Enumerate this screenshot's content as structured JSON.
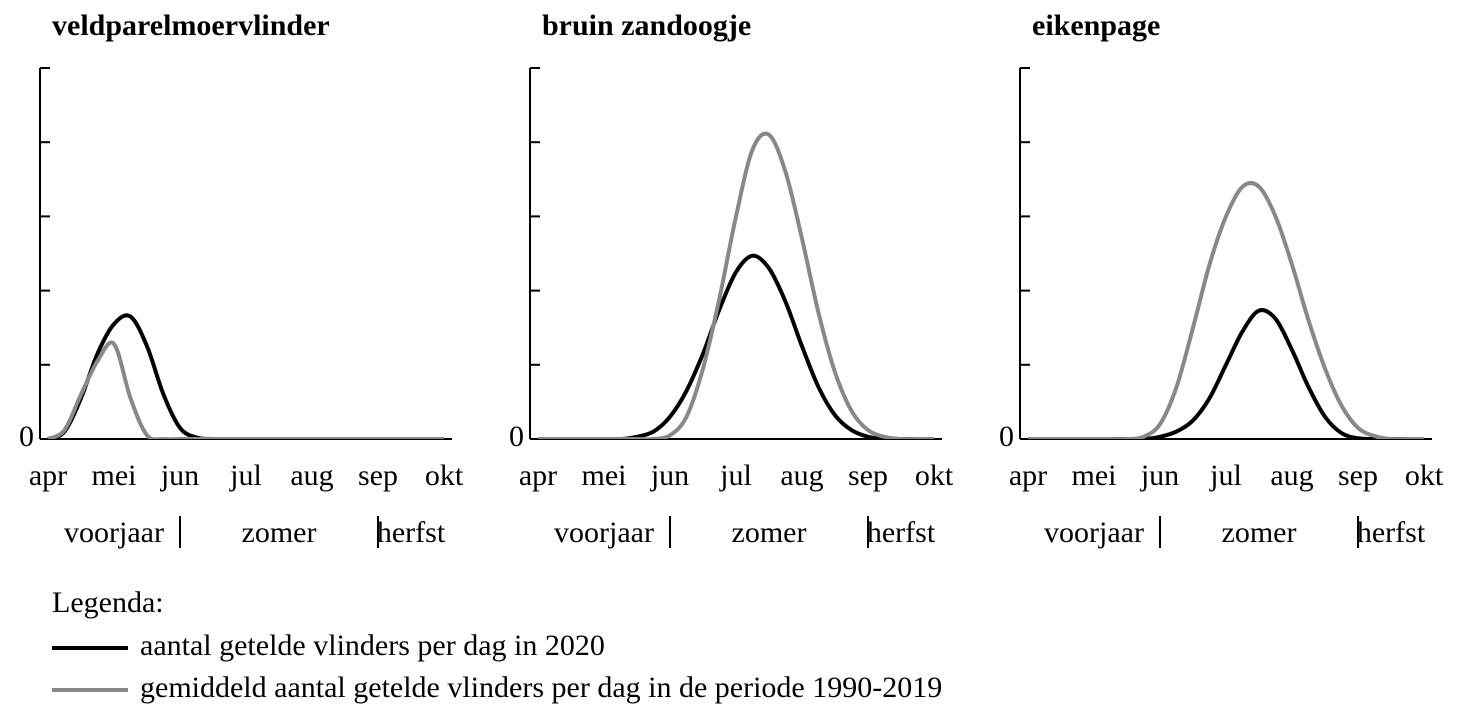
{
  "chart_data": [
    {
      "type": "line",
      "title": "veldparelmoervlinder",
      "categories": [
        "apr",
        "mei",
        "jun",
        "jul",
        "aug",
        "sep",
        "okt"
      ],
      "x": [
        0,
        0.25,
        0.5,
        0.75,
        1,
        1.25,
        1.5,
        1.75,
        2,
        2.25,
        2.5,
        2.75,
        3,
        3.25,
        3.5,
        3.75,
        4,
        4.25,
        4.5,
        4.75,
        5,
        5.25,
        5.5,
        5.75,
        6
      ],
      "xlim": [
        0,
        6
      ],
      "ylim": [
        0,
        5
      ],
      "yticks": [
        0
      ],
      "y_minor_ticks": [
        1,
        2,
        3,
        4,
        5
      ],
      "seasons": [
        "voorjaar",
        "zomer",
        "herfst"
      ],
      "season_bounds": [
        0,
        2,
        5,
        6
      ],
      "series": [
        {
          "name": "aantal getelde vlinders per dag in 2020",
          "color": "#000000",
          "values": [
            0,
            0.1,
            0.55,
            1.15,
            1.55,
            1.65,
            1.25,
            0.6,
            0.15,
            0.02,
            0,
            0,
            0,
            0,
            0,
            0,
            0,
            0,
            0,
            0,
            0,
            0,
            0,
            0,
            0
          ]
        },
        {
          "name": "gemiddeld aantal getelde vlinders per dag in de periode 1990-2019",
          "color": "#888888",
          "values": [
            0,
            0.12,
            0.6,
            1.05,
            1.28,
            0.55,
            0.05,
            0,
            0,
            0,
            0,
            0,
            0,
            0,
            0,
            0,
            0,
            0,
            0,
            0,
            0,
            0,
            0,
            0,
            0
          ]
        }
      ]
    },
    {
      "type": "line",
      "title": "bruin zandoogje",
      "categories": [
        "apr",
        "mei",
        "jun",
        "jul",
        "aug",
        "sep",
        "okt"
      ],
      "x": [
        0,
        0.25,
        0.5,
        0.75,
        1,
        1.25,
        1.5,
        1.75,
        2,
        2.25,
        2.5,
        2.75,
        3,
        3.25,
        3.5,
        3.75,
        4,
        4.25,
        4.5,
        4.75,
        5,
        5.25,
        5.5,
        5.75,
        6
      ],
      "xlim": [
        0,
        6
      ],
      "ylim": [
        0,
        5
      ],
      "yticks": [
        0
      ],
      "y_minor_ticks": [
        1,
        2,
        3,
        4,
        5
      ],
      "seasons": [
        "voorjaar",
        "zomer",
        "herfst"
      ],
      "season_bounds": [
        0,
        2,
        5,
        6
      ],
      "series": [
        {
          "name": "aantal getelde vlinders per dag in 2020",
          "color": "#000000",
          "values": [
            0,
            0,
            0,
            0,
            0,
            0,
            0.03,
            0.1,
            0.3,
            0.65,
            1.15,
            1.75,
            2.25,
            2.47,
            2.3,
            1.85,
            1.25,
            0.7,
            0.32,
            0.12,
            0.03,
            0,
            0,
            0,
            0
          ]
        },
        {
          "name": "gemiddeld aantal getelde vlinders per dag in de periode 1990-2019",
          "color": "#888888",
          "values": [
            0,
            0,
            0,
            0,
            0,
            0,
            0,
            0,
            0.05,
            0.3,
            0.95,
            1.9,
            3.0,
            3.9,
            4.1,
            3.6,
            2.7,
            1.7,
            0.9,
            0.38,
            0.12,
            0.03,
            0,
            0,
            0
          ]
        }
      ]
    },
    {
      "type": "line",
      "title": "eikenpage",
      "categories": [
        "apr",
        "mei",
        "jun",
        "jul",
        "aug",
        "sep",
        "okt"
      ],
      "x": [
        0,
        0.25,
        0.5,
        0.75,
        1,
        1.25,
        1.5,
        1.75,
        2,
        2.25,
        2.5,
        2.75,
        3,
        3.25,
        3.5,
        3.75,
        4,
        4.25,
        4.5,
        4.75,
        5,
        5.25,
        5.5,
        5.75,
        6
      ],
      "xlim": [
        0,
        6
      ],
      "ylim": [
        0,
        5
      ],
      "yticks": [
        0
      ],
      "y_minor_ticks": [
        1,
        2,
        3,
        4,
        5
      ],
      "seasons": [
        "voorjaar",
        "zomer",
        "herfst"
      ],
      "season_bounds": [
        0,
        2,
        5,
        6
      ],
      "series": [
        {
          "name": "aantal getelde vlinders per dag in 2020",
          "color": "#000000",
          "values": [
            0,
            0,
            0,
            0,
            0,
            0,
            0,
            0,
            0.03,
            0.1,
            0.25,
            0.55,
            1.0,
            1.45,
            1.73,
            1.62,
            1.2,
            0.7,
            0.3,
            0.08,
            0.01,
            0,
            0,
            0,
            0
          ]
        },
        {
          "name": "gemiddeld aantal getelde vlinders per dag in de periode 1990-2019",
          "color": "#888888",
          "values": [
            0,
            0,
            0,
            0,
            0,
            0,
            0,
            0.03,
            0.2,
            0.7,
            1.5,
            2.35,
            3.0,
            3.4,
            3.4,
            3.0,
            2.35,
            1.6,
            0.95,
            0.45,
            0.15,
            0.04,
            0,
            0,
            0
          ]
        }
      ]
    }
  ],
  "legend": {
    "title": "Legenda:"
  }
}
